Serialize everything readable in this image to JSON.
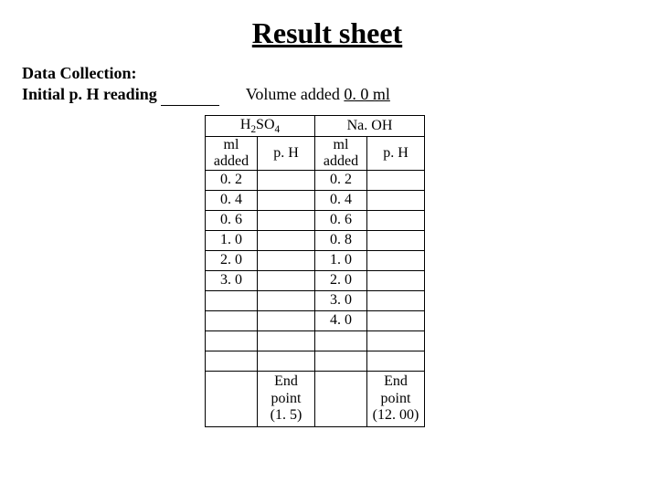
{
  "title": "Result sheet",
  "header": {
    "line1": "Data Collection:",
    "line2_label": "Initial p. H reading",
    "volume_label": "Volume added",
    "volume_value": "0. 0 ml"
  },
  "table": {
    "group_a_html": "H<sub>2</sub>SO<sub>4</sub>",
    "group_b": "Na. OH",
    "sub_ml_html": "ml<br>added",
    "sub_ph": "p. H",
    "colA_values": [
      "0. 2",
      "0. 4",
      "0. 6",
      "1. 0",
      "2. 0",
      "3. 0",
      "",
      "",
      "",
      ""
    ],
    "colB_values": [
      "0. 2",
      "0. 4",
      "0. 6",
      "0. 8",
      "1. 0",
      "2. 0",
      "3. 0",
      "4. 0",
      "",
      ""
    ],
    "end_a_html": "End<br>point<br>(1. 5)",
    "end_b_html": "End<br>point<br>(12. 00)"
  },
  "style": {
    "text_color": "#000000",
    "background": "#ffffff",
    "border_color": "#000000",
    "title_fontsize": 32,
    "body_fontsize": 18,
    "table_fontsize": 16
  }
}
